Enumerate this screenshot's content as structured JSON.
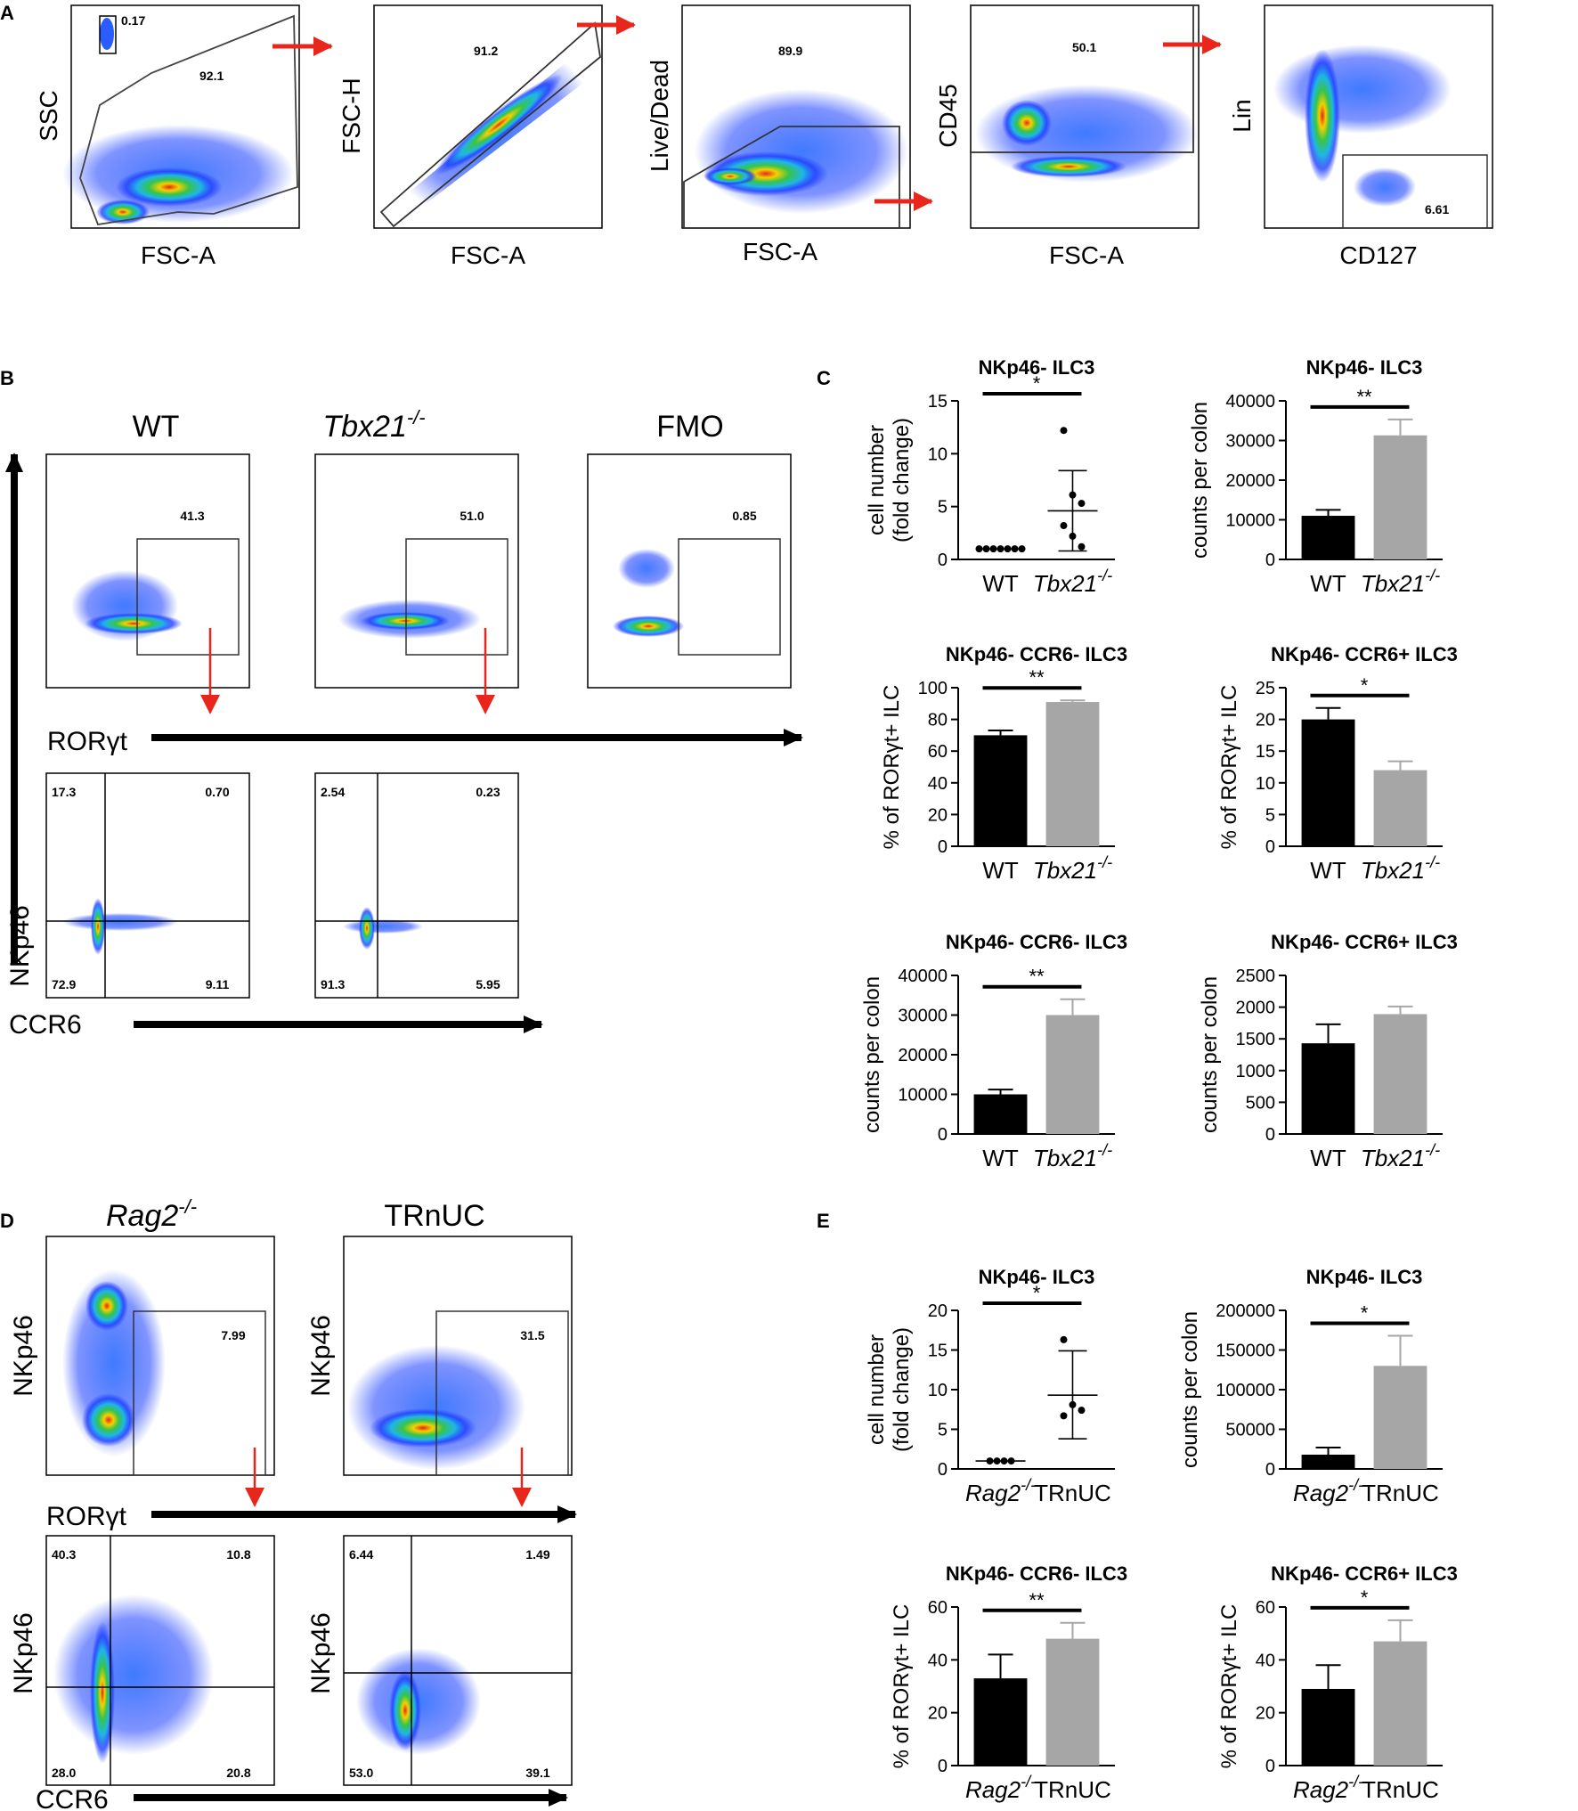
{
  "panels": {
    "A": "A",
    "B": "B",
    "C": "C",
    "D": "D",
    "E": "E"
  },
  "colors": {
    "wt": "#000000",
    "ko": "#a6a6a6",
    "arrow": "#e8261c",
    "axis": "#000000"
  },
  "panel_A": {
    "plots": [
      {
        "x_label": "FSC-A",
        "y_label": "SSC",
        "values": [
          "0.17",
          "92.1"
        ]
      },
      {
        "x_label": "FSC-A",
        "y_label": "FSC-H",
        "values": [
          "91.2"
        ]
      },
      {
        "x_label": "FSC-A",
        "y_label": "Live/Dead",
        "values": [
          "89.9"
        ]
      },
      {
        "x_label": "FSC-A",
        "y_label": "CD45",
        "values": [
          "50.1"
        ]
      },
      {
        "x_label": "CD127",
        "y_label": "Lin",
        "values": [
          "6.61"
        ]
      }
    ]
  },
  "panel_B": {
    "headers": [
      "WT",
      "Tbx21",
      "FMO"
    ],
    "sup": "-/-",
    "gate_values": [
      "41.3",
      "51.0",
      "0.85"
    ],
    "x_axis_label": "RORγt",
    "y_axis_label": "NKp46",
    "x2_axis_label": "CCR6",
    "quadrants": [
      {
        "tl": "17.3",
        "tr": "0.70",
        "bl": "72.9",
        "br": "9.11"
      },
      {
        "tl": "2.54",
        "tr": "0.23",
        "bl": "91.3",
        "br": "5.95"
      }
    ]
  },
  "panel_D": {
    "headers": [
      "Rag2",
      "TRnUC"
    ],
    "sup": "-/-",
    "gate_values": [
      "7.99",
      "31.5"
    ],
    "y_label": "NKp46",
    "x_axis_label": "RORγt",
    "x2_axis_label": "CCR6",
    "quadrants": [
      {
        "tl": "40.3",
        "tr": "10.8",
        "bl": "28.0",
        "br": "20.8"
      },
      {
        "tl": "6.44",
        "tr": "1.49",
        "bl": "53.0",
        "br": "39.1"
      }
    ]
  },
  "chart_data": [
    {
      "type": "scatter",
      "panel": "C",
      "title": "NKp46- ILC3",
      "ylabel": "cell number (fold change)",
      "ylabel_lines": [
        "cell number",
        "(fold change)"
      ],
      "categories": [
        "WT",
        "Tbx21"
      ],
      "ylim": [
        0,
        15
      ],
      "yticks": [
        "0",
        "5",
        "10",
        "15"
      ],
      "series": [
        {
          "name": "WT",
          "points": [
            1,
            1,
            1,
            1,
            1,
            1,
            1
          ],
          "mean": 1
        },
        {
          "name": "Tbx21-/-",
          "points": [
            12.2,
            6.1,
            5.3,
            3.2,
            2.2,
            1.2
          ],
          "mean": 4.6,
          "sd_low": 0.8,
          "sd_high": 8.4
        }
      ],
      "significance": "*"
    },
    {
      "type": "bar",
      "panel": "C",
      "title": "NKp46- ILC3",
      "ylabel": "counts per colon",
      "categories": [
        "WT",
        "Tbx21"
      ],
      "values": [
        11000,
        31300
      ],
      "errors": [
        1500,
        4000
      ],
      "ylim": [
        0,
        40000
      ],
      "yticks": [
        "0",
        "10000",
        "20000",
        "30000",
        "40000"
      ],
      "significance": "**"
    },
    {
      "type": "bar",
      "panel": "C",
      "title": "NKp46- CCR6- ILC3",
      "ylabel": "% of RORγt+ ILC",
      "categories": [
        "WT",
        "Tbx21"
      ],
      "values": [
        70,
        91
      ],
      "errors": [
        3,
        1
      ],
      "ylim": [
        0,
        100
      ],
      "yticks": [
        "0",
        "20",
        "40",
        "60",
        "80",
        "100"
      ],
      "significance": "**"
    },
    {
      "type": "bar",
      "panel": "C",
      "title": "NKp46- CCR6+ ILC3",
      "ylabel": "% of RORγt+ ILC",
      "categories": [
        "WT",
        "Tbx21"
      ],
      "values": [
        20,
        12
      ],
      "errors": [
        1.8,
        1.4
      ],
      "ylim": [
        0,
        25
      ],
      "yticks": [
        "0",
        "5",
        "10",
        "15",
        "20",
        "25"
      ],
      "significance": "*"
    },
    {
      "type": "bar",
      "panel": "C",
      "title": "NKp46- CCR6- ILC3",
      "ylabel": "counts per colon",
      "categories": [
        "WT",
        "Tbx21"
      ],
      "values": [
        10000,
        30000
      ],
      "errors": [
        1200,
        4000
      ],
      "ylim": [
        0,
        40000
      ],
      "yticks": [
        "0",
        "10000",
        "20000",
        "30000",
        "40000"
      ],
      "significance": "**"
    },
    {
      "type": "bar",
      "panel": "C",
      "title": "NKp46- CCR6+ ILC3",
      "ylabel": "counts per colon",
      "categories": [
        "WT",
        "Tbx21"
      ],
      "values": [
        1430,
        1890
      ],
      "errors": [
        300,
        120
      ],
      "ylim": [
        0,
        2500
      ],
      "yticks": [
        "0",
        "500",
        "1000",
        "1500",
        "2000",
        "2500"
      ],
      "significance": ""
    },
    {
      "type": "scatter",
      "panel": "E",
      "title": "NKp46- ILC3",
      "ylabel": "cell number (fold change)",
      "ylabel_lines": [
        "cell number",
        "(fold change)"
      ],
      "categories": [
        "Rag2",
        "TRnUC"
      ],
      "ylim": [
        0,
        20
      ],
      "yticks": [
        "0",
        "5",
        "10",
        "15",
        "20"
      ],
      "series": [
        {
          "name": "Rag2-/-",
          "points": [
            1,
            1,
            1,
            1
          ],
          "mean": 1
        },
        {
          "name": "TRnUC",
          "points": [
            16.3,
            8.1,
            7.4,
            6.7
          ],
          "mean": 9.3,
          "sd_low": 3.8,
          "sd_high": 14.9
        }
      ],
      "significance": "*"
    },
    {
      "type": "bar",
      "panel": "E",
      "title": "NKp46- ILC3",
      "ylabel": "counts per colon",
      "categories": [
        "Rag2",
        "TRnUC"
      ],
      "values": [
        18000,
        130000
      ],
      "errors": [
        9000,
        38000
      ],
      "ylim": [
        0,
        200000
      ],
      "yticks": [
        "0",
        "50000",
        "100000",
        "150000",
        "200000"
      ],
      "significance": "*"
    },
    {
      "type": "bar",
      "panel": "E",
      "title": "NKp46- CCR6- ILC3",
      "ylabel": "% of RORγt+ ILC",
      "categories": [
        "Rag2",
        "TRnUC"
      ],
      "values": [
        33,
        48
      ],
      "errors": [
        9,
        6
      ],
      "ylim": [
        0,
        60
      ],
      "yticks": [
        "0",
        "20",
        "40",
        "60"
      ],
      "significance": "**"
    },
    {
      "type": "bar",
      "panel": "E",
      "title": "NKp46- CCR6+ ILC3",
      "ylabel": "% of RORγt+ ILC",
      "categories": [
        "Rag2",
        "TRnUC"
      ],
      "values": [
        29,
        47
      ],
      "errors": [
        9,
        8
      ],
      "ylim": [
        0,
        60
      ],
      "yticks": [
        "0",
        "20",
        "40",
        "60"
      ],
      "significance": "*"
    }
  ]
}
